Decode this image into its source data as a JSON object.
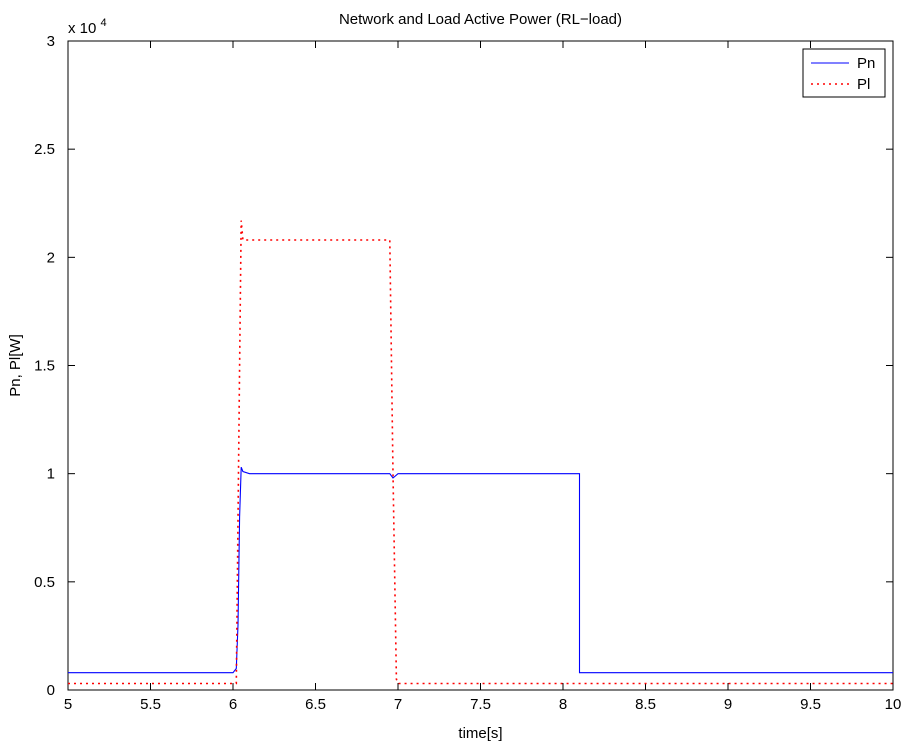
{
  "chart_data": {
    "type": "line",
    "title": "Network and Load Active Power (RL−load)",
    "xlabel": "time[s]",
    "ylabel": "Pn, Pl[W]",
    "xlim": [
      5,
      10
    ],
    "ylim": [
      0,
      30000
    ],
    "y_exponent_label": "x 10",
    "y_exponent_power": "4",
    "x_ticks": [
      5,
      5.5,
      6,
      6.5,
      7,
      7.5,
      8,
      8.5,
      9,
      9.5,
      10
    ],
    "x_tick_labels": [
      "5",
      "5.5",
      "6",
      "6.5",
      "7",
      "7.5",
      "8",
      "8.5",
      "9",
      "9.5",
      "10"
    ],
    "y_ticks": [
      0,
      5000,
      10000,
      15000,
      20000,
      25000,
      30000
    ],
    "y_tick_labels": [
      "0",
      "0.5",
      "1",
      "1.5",
      "2",
      "2.5",
      "3"
    ],
    "grid": false,
    "legend_position": "top-right",
    "series": [
      {
        "name": "Pn",
        "color": "#0000ff",
        "line_style": "solid",
        "x": [
          5.0,
          6.0,
          6.02,
          6.03,
          6.04,
          6.05,
          6.06,
          6.1,
          6.95,
          6.97,
          7.0,
          8.1,
          8.1,
          8.15,
          10.0
        ],
        "y": [
          800,
          800,
          1000,
          3000,
          8000,
          10300,
          10100,
          10000,
          10000,
          9800,
          10000,
          10000,
          800,
          800,
          800
        ]
      },
      {
        "name": "Pl",
        "color": "#ff0000",
        "line_style": "dotted",
        "x": [
          5.0,
          6.02,
          6.04,
          6.05,
          6.06,
          6.1,
          6.95,
          6.97,
          6.99,
          7.0,
          10.0
        ],
        "y": [
          300,
          300,
          15000,
          21700,
          20800,
          20800,
          20800,
          10000,
          500,
          300,
          300
        ]
      }
    ]
  }
}
